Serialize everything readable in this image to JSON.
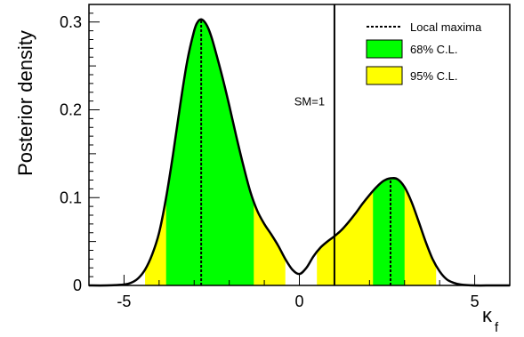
{
  "chart_data": {
    "type": "area",
    "title": "",
    "xlabel": "κ",
    "xlabel_sub": "f",
    "ylabel": "Posterior density",
    "xlim": [
      -6.0,
      6.0
    ],
    "ylim": [
      0,
      0.32
    ],
    "x_ticks": [
      -5,
      0,
      5
    ],
    "x_tick_labels": [
      "-5",
      "0",
      "5"
    ],
    "y_ticks": [
      0,
      0.1,
      0.2,
      0.3
    ],
    "y_tick_labels": [
      "0",
      "0.1",
      "0.2",
      "0.3"
    ],
    "grid": false,
    "legend_position": "top-right",
    "density": {
      "x": [
        -6.0,
        -5.5,
        -5.0,
        -4.8,
        -4.6,
        -4.4,
        -4.2,
        -4.0,
        -3.8,
        -3.6,
        -3.4,
        -3.2,
        -3.0,
        -2.9,
        -2.8,
        -2.7,
        -2.6,
        -2.5,
        -2.4,
        -2.2,
        -2.0,
        -1.8,
        -1.6,
        -1.4,
        -1.2,
        -1.0,
        -0.8,
        -0.6,
        -0.4,
        -0.2,
        0.0,
        0.2,
        0.4,
        0.6,
        0.8,
        1.0,
        1.2,
        1.4,
        1.6,
        1.8,
        2.0,
        2.2,
        2.4,
        2.6,
        2.8,
        3.0,
        3.2,
        3.4,
        3.6,
        3.8,
        4.0,
        4.2,
        4.4,
        4.6,
        5.0,
        5.5,
        6.0
      ],
      "y": [
        0.0,
        0.0,
        0.001,
        0.003,
        0.008,
        0.018,
        0.035,
        0.06,
        0.1,
        0.15,
        0.205,
        0.255,
        0.29,
        0.3,
        0.303,
        0.3,
        0.293,
        0.282,
        0.268,
        0.238,
        0.205,
        0.17,
        0.137,
        0.107,
        0.085,
        0.07,
        0.058,
        0.045,
        0.03,
        0.018,
        0.013,
        0.02,
        0.033,
        0.043,
        0.05,
        0.056,
        0.063,
        0.072,
        0.082,
        0.093,
        0.103,
        0.112,
        0.119,
        0.122,
        0.121,
        0.112,
        0.095,
        0.073,
        0.05,
        0.03,
        0.016,
        0.007,
        0.003,
        0.001,
        0.0,
        0.0,
        0.0
      ]
    },
    "local_maxima": [
      -2.8,
      2.6
    ],
    "intervals_95": [
      [
        -4.4,
        -0.4
      ],
      [
        0.5,
        3.9
      ]
    ],
    "intervals_68": [
      [
        -3.8,
        -1.3
      ],
      [
        2.1,
        3.0
      ]
    ],
    "sm_value": 1,
    "annotations": [
      {
        "text": "SM=1",
        "x": 1,
        "y": 0.205
      }
    ],
    "legend": [
      {
        "label": "Local maxima",
        "swatch": "dotted-line"
      },
      {
        "label": "68% C.L.",
        "swatch": "fill",
        "color": "#00ff00"
      },
      {
        "label": "95% C.L.",
        "swatch": "fill",
        "color": "#ffff00"
      }
    ],
    "colors": {
      "cl68": "#00ff00",
      "cl95": "#ffff00",
      "line": "#000000"
    }
  }
}
